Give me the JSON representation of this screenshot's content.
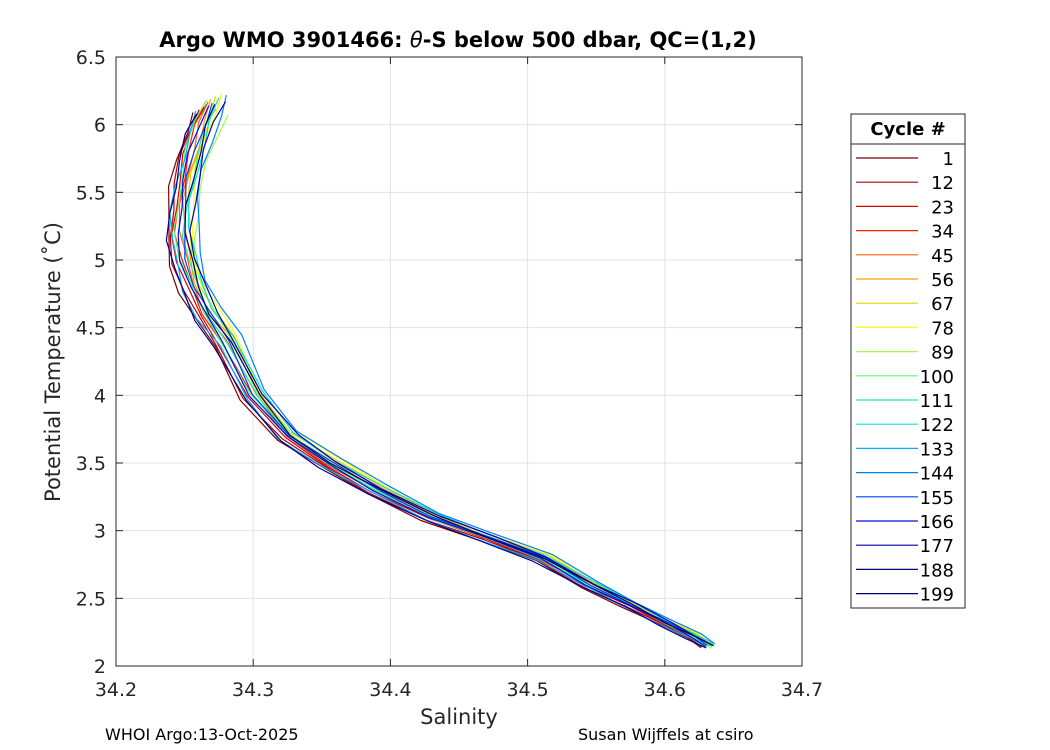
{
  "chart_data": {
    "type": "line",
    "title": "Argo WMO 3901466: θ-S below 500 dbar,  QC=(1,2)",
    "title_parts": {
      "prefix": "Argo WMO 3901466: ",
      "theta": "θ",
      "suffix": "-S below 500 dbar,  QC=(1,2)"
    },
    "xlabel": "Salinity",
    "ylabel": "Potential Temperature (˚C)",
    "xlim": [
      34.2,
      34.7
    ],
    "ylim": [
      2,
      6.5
    ],
    "xticks": [
      "34.2",
      "34.3",
      "34.4",
      "34.5",
      "34.6",
      "34.7"
    ],
    "xtick_values": [
      34.2,
      34.3,
      34.4,
      34.5,
      34.6,
      34.7
    ],
    "yticks": [
      "2",
      "2.5",
      "3",
      "3.5",
      "4",
      "4.5",
      "5",
      "5.5",
      "6",
      "6.5"
    ],
    "ytick_values": [
      2,
      2.5,
      3,
      3.5,
      4,
      4.5,
      5,
      5.5,
      6,
      6.5
    ],
    "grid": true,
    "legend_placement": "outside-right",
    "legend": {
      "title": "Cycle #",
      "entries": [
        {
          "label": "1",
          "color": "#800000"
        },
        {
          "label": "12",
          "color": "#b30000"
        },
        {
          "label": "23",
          "color": "#d90000"
        },
        {
          "label": "34",
          "color": "#ff2000"
        },
        {
          "label": "45",
          "color": "#ff6000"
        },
        {
          "label": "56",
          "color": "#ffa000"
        },
        {
          "label": "67",
          "color": "#e6d000"
        },
        {
          "label": "78",
          "color": "#ffff00"
        },
        {
          "label": "89",
          "color": "#a0ff40"
        },
        {
          "label": "100",
          "color": "#50ff70"
        },
        {
          "label": "111",
          "color": "#20f0a0"
        },
        {
          "label": "122",
          "color": "#00e0e0"
        },
        {
          "label": "133",
          "color": "#00b0ff"
        },
        {
          "label": "144",
          "color": "#0080ff"
        },
        {
          "label": "155",
          "color": "#0040ff"
        },
        {
          "label": "166",
          "color": "#0010e0"
        },
        {
          "label": "177",
          "color": "#0000b0"
        },
        {
          "label": "188",
          "color": "#000090"
        },
        {
          "label": "199",
          "color": "#000070"
        }
      ]
    },
    "mean_profile": {
      "salinity": [
        34.268,
        34.262,
        34.256,
        34.251,
        34.248,
        34.247,
        34.25,
        34.256,
        34.266,
        34.28,
        34.3,
        34.325,
        34.355,
        34.39,
        34.43,
        34.47,
        34.51,
        34.545,
        34.575,
        34.6,
        34.62,
        34.632
      ],
      "theta": [
        6.15,
        6.0,
        5.8,
        5.6,
        5.4,
        5.2,
        5.0,
        4.8,
        4.6,
        4.4,
        4.0,
        3.7,
        3.5,
        3.3,
        3.1,
        2.95,
        2.8,
        2.6,
        2.45,
        2.32,
        2.22,
        2.15
      ]
    },
    "profile_offsets": {
      "salinity": [
        -0.012,
        -0.009,
        -0.006,
        -0.003,
        0.0,
        0.003,
        0.006,
        0.009,
        0.012,
        -0.004,
        0.004,
        0.008,
        -0.008,
        0.014,
        0.002,
        -0.002,
        0.01,
        -0.01,
        0.005
      ],
      "theta": [
        -0.06,
        -0.04,
        -0.02,
        0.0,
        0.02,
        0.04,
        0.06,
        0.08,
        -0.08,
        0.03,
        -0.03,
        0.05,
        -0.05,
        0.07,
        0.01,
        -0.01,
        0.02,
        -0.07,
        0.0
      ]
    }
  },
  "footer": {
    "left": "WHOI Argo:13-Oct-2025",
    "right": "Susan Wijffels at csiro"
  }
}
